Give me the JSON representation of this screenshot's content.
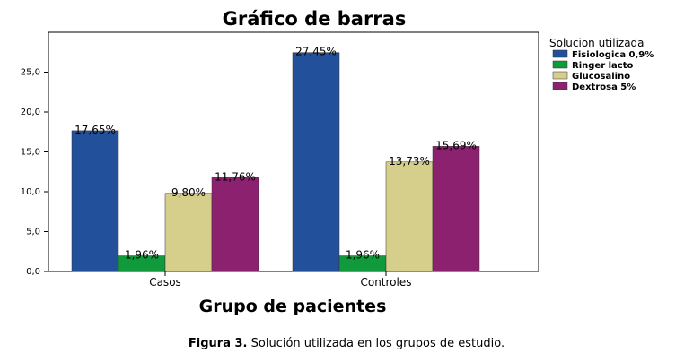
{
  "chart_data": {
    "type": "bar",
    "title": "Gráfico de barras",
    "xlabel": "Grupo de pacientes",
    "ylabel": "",
    "ylim": [
      0,
      30
    ],
    "yticks": [
      "0,0",
      "5,0",
      "10,0",
      "15,0",
      "20,0",
      "25,0"
    ],
    "categories": [
      "Casos",
      "Controles"
    ],
    "legend_title": "Solucion utilizada",
    "legend_position": "right",
    "series": [
      {
        "name": "Fisiologica 0,9%",
        "color": "#23509a",
        "values": [
          17.65,
          27.45
        ],
        "labels": [
          "17,65%",
          "27,45%"
        ]
      },
      {
        "name": "Ringer lacto",
        "color": "#119a3c",
        "values": [
          1.96,
          1.96
        ],
        "labels": [
          "1,96%",
          "1,96%"
        ]
      },
      {
        "name": "Glucosalino",
        "color": "#d6cf8c",
        "values": [
          9.8,
          13.73
        ],
        "labels": [
          "9,80%",
          "13,73%"
        ]
      },
      {
        "name": "Dextrosa 5%",
        "color": "#8c2170",
        "values": [
          11.76,
          15.69
        ],
        "labels": [
          "11,76%",
          "15,69%"
        ]
      }
    ]
  },
  "caption": {
    "label": "Figura 3.",
    "text": " Solución utilizada en los grupos de estudio."
  }
}
